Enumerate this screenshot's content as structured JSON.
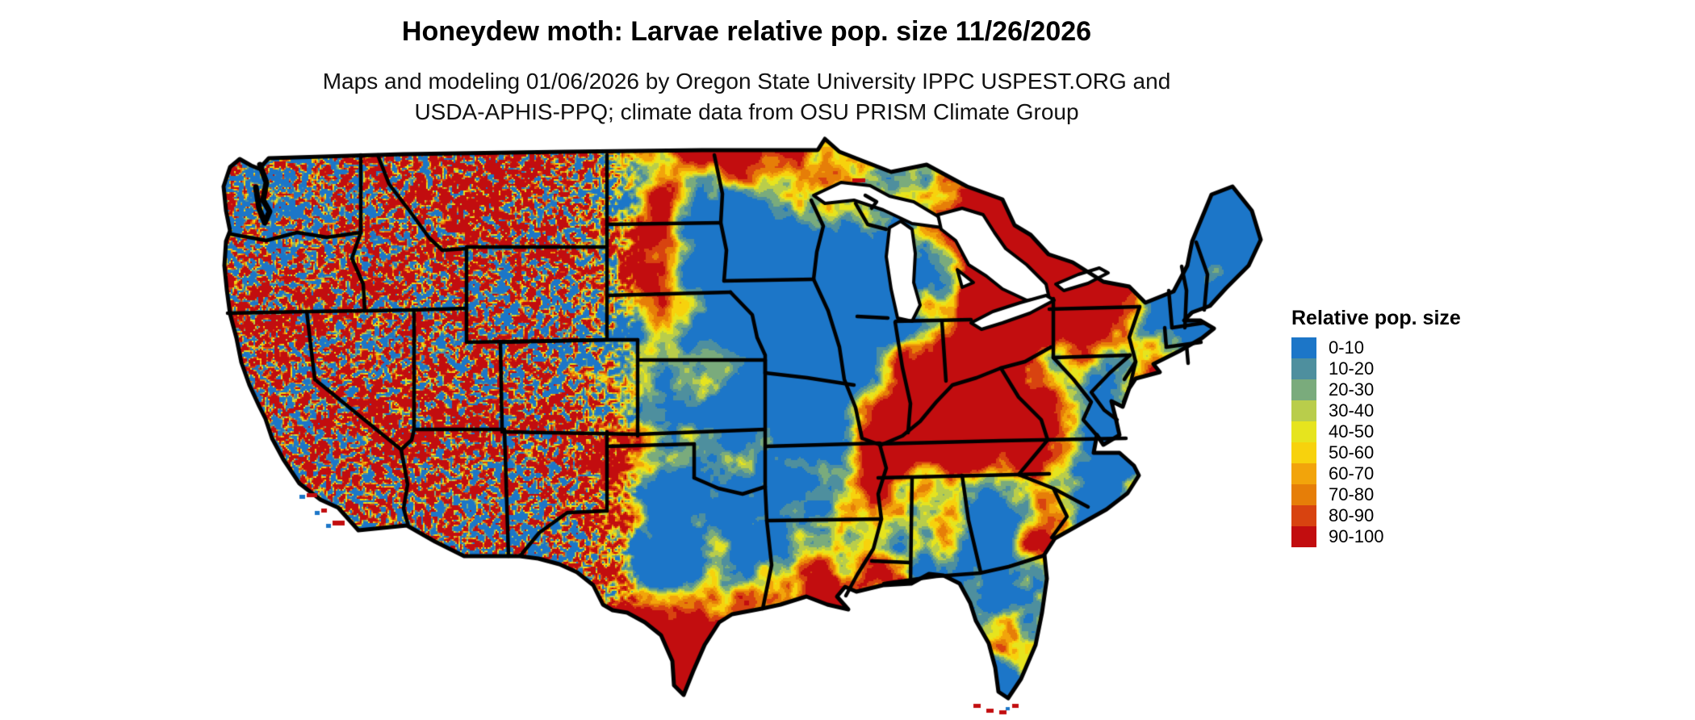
{
  "header": {
    "title": "Honeydew moth: Larvae relative pop. size 11/26/2026",
    "subtitle_line1": "Maps and modeling 01/06/2026 by Oregon State University IPPC USPEST.ORG and",
    "subtitle_line2": "USDA-APHIS-PPQ; climate data from OSU PRISM Climate Group"
  },
  "legend": {
    "title": "Relative pop. size",
    "items": [
      {
        "label": "0-10",
        "color": "#1C76C8"
      },
      {
        "label": "10-20",
        "color": "#4E8F9E"
      },
      {
        "label": "20-30",
        "color": "#7AAB7C"
      },
      {
        "label": "30-40",
        "color": "#B9CD4B"
      },
      {
        "label": "40-50",
        "color": "#E6E41E"
      },
      {
        "label": "50-60",
        "color": "#F7D20D"
      },
      {
        "label": "60-70",
        "color": "#F2A40B"
      },
      {
        "label": "70-80",
        "color": "#E67E08"
      },
      {
        "label": "80-90",
        "color": "#D84310"
      },
      {
        "label": "90-100",
        "color": "#C20D0F"
      }
    ]
  },
  "map": {
    "region": "Contiguous United States",
    "type": "raster-choropleth",
    "value_range": [
      0,
      100
    ],
    "border_color": "#000000",
    "water_color": "#FFFFFF",
    "background_color": "#FFFFFF",
    "dominant_low_color": "#1C76C8",
    "dominant_high_color": "#C20D0F"
  }
}
